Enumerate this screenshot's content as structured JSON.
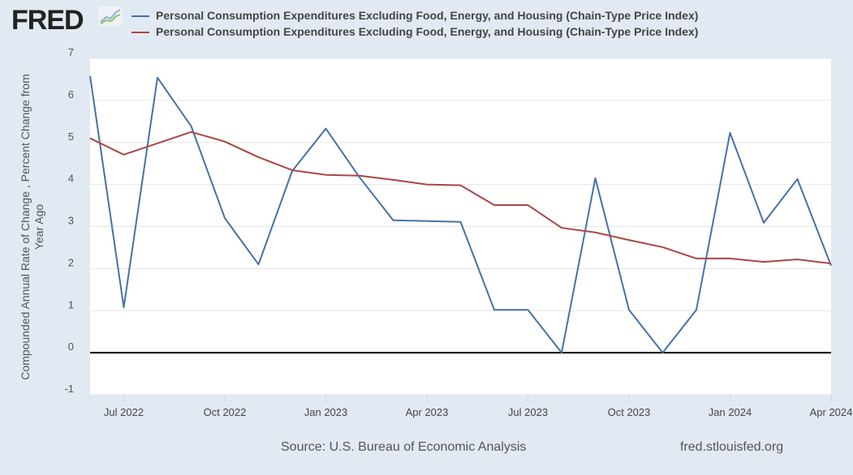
{
  "logo": "FRED",
  "footer": {
    "source": "Source: U.S. Bureau of Economic Analysis",
    "site": "fred.stlouisfed.org"
  },
  "chart_data": {
    "type": "line",
    "title": "",
    "xlabel": "",
    "ylabel": "Compounded Annual Rate of Change , Percent Change from Year Ago",
    "ylim": [
      -1,
      7
    ],
    "yticks": [
      "-1",
      "0",
      "1",
      "2",
      "3",
      "4",
      "5",
      "6",
      "7"
    ],
    "xtick_labels": [
      "Jul 2022",
      "Oct 2022",
      "Jan 2023",
      "Apr 2023",
      "Jul 2023",
      "Oct 2023",
      "Jan 2024",
      "Apr 2024"
    ],
    "xtick_index": [
      1,
      4,
      7,
      10,
      13,
      16,
      19,
      22
    ],
    "x": [
      "2022-06",
      "2022-07",
      "2022-08",
      "2022-09",
      "2022-10",
      "2022-11",
      "2022-12",
      "2023-01",
      "2023-02",
      "2023-03",
      "2023-04",
      "2023-05",
      "2023-06",
      "2023-07",
      "2023-08",
      "2023-09",
      "2023-10",
      "2023-11",
      "2023-12",
      "2024-01",
      "2024-02",
      "2024-03",
      "2024-04"
    ],
    "grid": true,
    "legend_position": "top",
    "series": [
      {
        "name": "Personal Consumption Expenditures Excluding Food, Energy, and Housing (Chain-Type Price Index)",
        "color": "#4572a7",
        "values": [
          6.58,
          1.08,
          6.54,
          5.39,
          3.2,
          2.1,
          4.32,
          5.33,
          4.17,
          3.15,
          3.13,
          3.11,
          1.02,
          1.02,
          0,
          4.15,
          1.02,
          0,
          1.02,
          5.23,
          3.09,
          4.13,
          2.07
        ]
      },
      {
        "name": "Personal Consumption Expenditures Excluding Food, Energy, and Housing (Chain-Type Price Index)",
        "color": "#aa4643",
        "values": [
          5.1,
          4.71,
          4.98,
          5.25,
          5.02,
          4.65,
          4.34,
          4.23,
          4.21,
          4.11,
          4.0,
          3.98,
          3.51,
          3.51,
          2.97,
          2.86,
          2.68,
          2.51,
          2.24,
          2.24,
          2.16,
          2.22,
          2.12
        ]
      }
    ]
  }
}
